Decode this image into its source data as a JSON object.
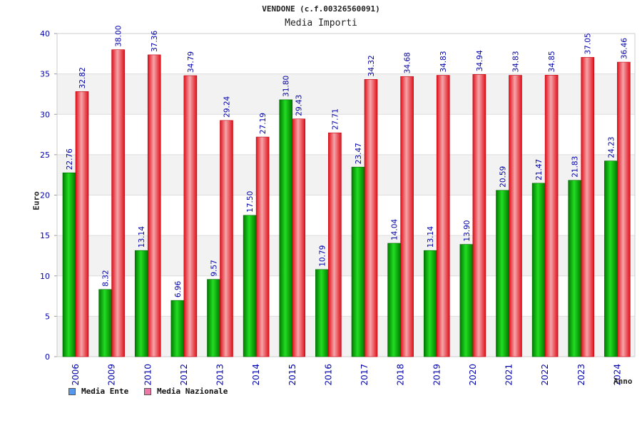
{
  "title": "VENDONE (c.f.00326560091)",
  "subtitle": "Media Importi",
  "colors": {
    "ente": "#00a000",
    "nazionale": "#e8202a",
    "legend_ente": "#5599ee",
    "legend_nazionale": "#ee77aa",
    "axis_text": "#0000aa"
  },
  "chart_data": {
    "type": "bar",
    "title": "VENDONE (c.f.00326560091)",
    "subtitle": "Media Importi",
    "xlabel": "Anno",
    "ylabel": "Euro",
    "ylim": [
      0,
      40
    ],
    "yticks": [
      0,
      5,
      10,
      15,
      20,
      25,
      30,
      35,
      40
    ],
    "categories": [
      "2006",
      "2009",
      "2010",
      "2012",
      "2013",
      "2014",
      "2015",
      "2016",
      "2017",
      "2018",
      "2019",
      "2020",
      "2021",
      "2022",
      "2023",
      "2024"
    ],
    "series": [
      {
        "name": "Media Ente",
        "values": [
          22.76,
          8.32,
          13.14,
          6.96,
          9.57,
          17.5,
          31.8,
          10.79,
          23.47,
          14.04,
          13.14,
          13.9,
          20.59,
          21.47,
          21.83,
          24.23
        ],
        "labels": [
          "22.76",
          "8.32",
          "13.14",
          "6.96",
          "9.57",
          "17.50",
          "31.80",
          "10.79",
          "23.47",
          "14.04",
          "13.14",
          "13.90",
          "20.59",
          "21.47",
          "21.83",
          "24.23"
        ]
      },
      {
        "name": "Media Nazionale",
        "values": [
          32.82,
          38.0,
          37.36,
          34.79,
          29.24,
          27.19,
          29.43,
          27.71,
          34.32,
          34.68,
          34.83,
          34.94,
          34.83,
          34.85,
          37.05,
          36.46
        ],
        "labels": [
          "32.82",
          "38.00",
          "37.36",
          "34.79",
          "29.24",
          "27.19",
          "29.43",
          "27.71",
          "34.32",
          "34.68",
          "34.83",
          "34.94",
          "34.83",
          "34.85",
          "37.05",
          "36.46"
        ]
      }
    ],
    "grid": true,
    "legend_position": "bottom-left"
  }
}
